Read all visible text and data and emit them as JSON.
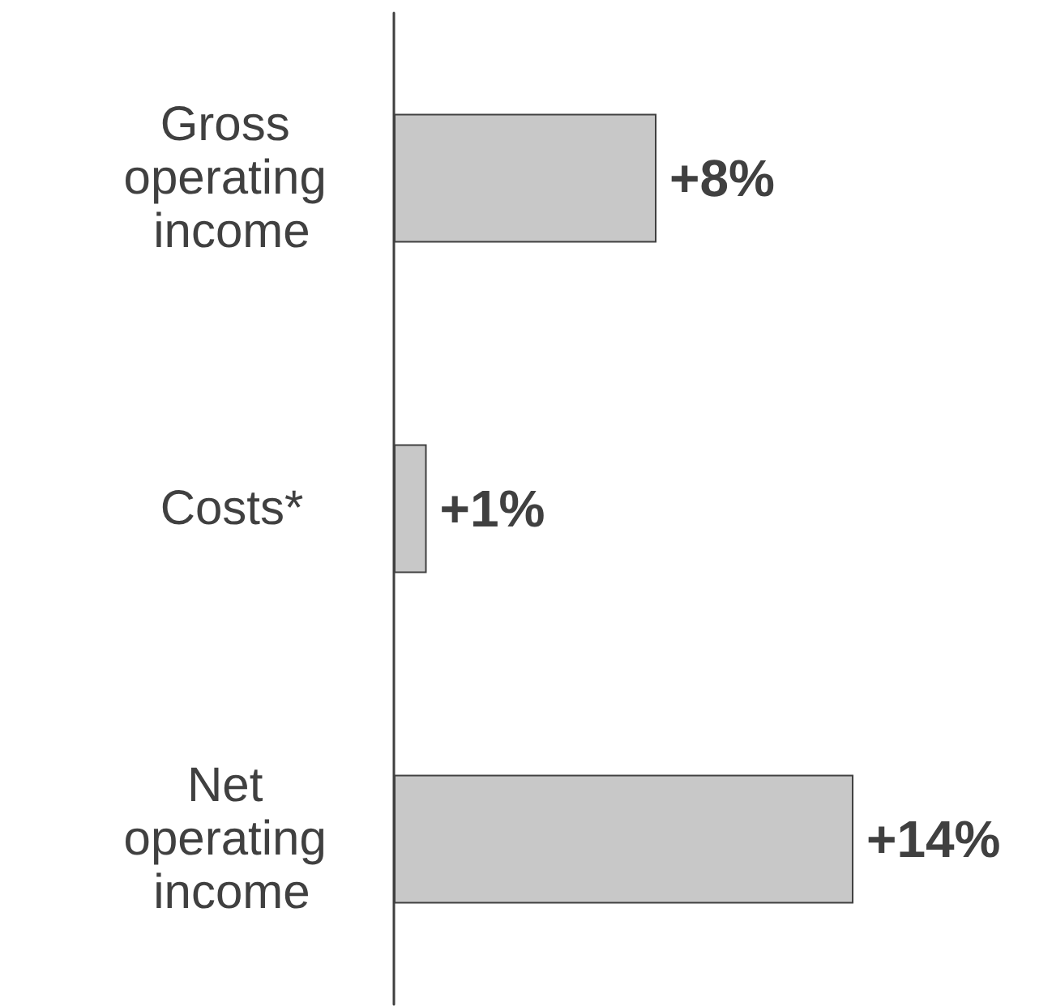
{
  "chart_data": {
    "type": "bar",
    "orientation": "horizontal",
    "categories": [
      "Gross operating income",
      "Costs*",
      "Net operating income"
    ],
    "values": [
      8,
      1,
      14
    ],
    "value_labels": [
      "+8%",
      "+1%",
      "+14%"
    ],
    "color": "#c8c8c8",
    "grid": false
  }
}
